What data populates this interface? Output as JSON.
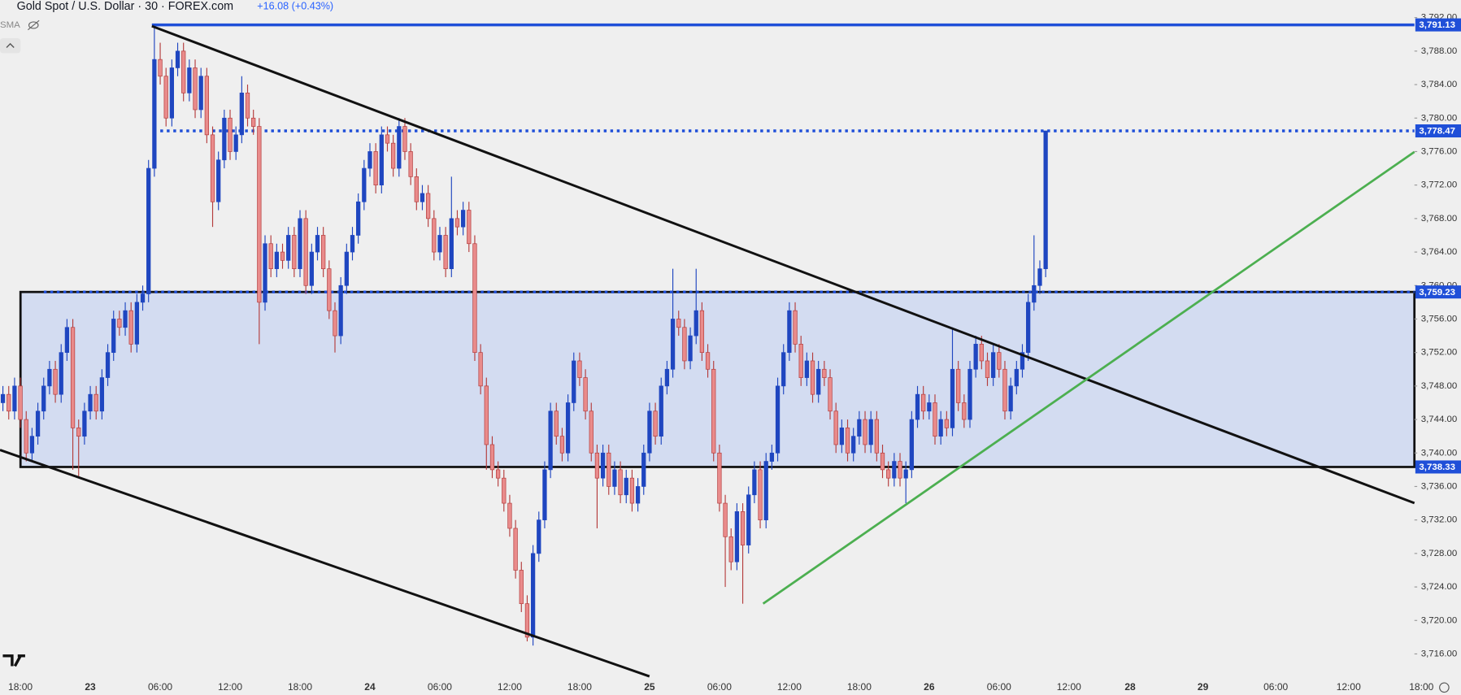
{
  "chart_data": {
    "type": "candlestick",
    "title": "Gold Spot / U.S. Dollar · 30 · FOREX.com",
    "subtitle": "+16.08 (+0.43%)",
    "indicator": "SMA",
    "up_color": "#1f46c0",
    "down_color": "#e98b8b",
    "down_edge": "#b43c3c",
    "xlim": [
      -0.5,
      242.3
    ],
    "ylim": [
      3713.1,
      3794.1
    ],
    "yticks": [
      {
        "value": 3716,
        "label": "3,716.00"
      },
      {
        "value": 3720,
        "label": "3,720.00"
      },
      {
        "value": 3724,
        "label": "3,724.00"
      },
      {
        "value": 3728,
        "label": "3,728.00"
      },
      {
        "value": 3732,
        "label": "3,732.00"
      },
      {
        "value": 3736,
        "label": "3,736.00"
      },
      {
        "value": 3740,
        "label": "3,740.00"
      },
      {
        "value": 3744,
        "label": "3,744.00"
      },
      {
        "value": 3748,
        "label": "3,748.00"
      },
      {
        "value": 3752,
        "label": "3,752.00"
      },
      {
        "value": 3756,
        "label": "3,756.00"
      },
      {
        "value": 3760,
        "label": "3,760.00"
      },
      {
        "value": 3764,
        "label": "3,764.00"
      },
      {
        "value": 3768,
        "label": "3,768.00"
      },
      {
        "value": 3772,
        "label": "3,772.00"
      },
      {
        "value": 3776,
        "label": "3,776.00"
      },
      {
        "value": 3780,
        "label": "3,780.00"
      },
      {
        "value": 3784,
        "label": "3,784.00"
      },
      {
        "value": 3788,
        "label": "3,788.00"
      },
      {
        "value": 3792,
        "label": "3,792.00"
      }
    ],
    "xticks": [
      {
        "value": 3,
        "label": "18:00"
      },
      {
        "value": 15,
        "label": "23"
      },
      {
        "value": 27,
        "label": "06:00"
      },
      {
        "value": 39,
        "label": "12:00"
      },
      {
        "value": 51,
        "label": "18:00"
      },
      {
        "value": 63,
        "label": "24"
      },
      {
        "value": 75,
        "label": "06:00"
      },
      {
        "value": 87,
        "label": "12:00"
      },
      {
        "value": 99,
        "label": "18:00"
      },
      {
        "value": 111,
        "label": "25"
      },
      {
        "value": 123,
        "label": "06:00"
      },
      {
        "value": 135,
        "label": "12:00"
      },
      {
        "value": 147,
        "label": "18:00"
      },
      {
        "value": 159,
        "label": "26"
      },
      {
        "value": 171,
        "label": "06:00"
      },
      {
        "value": 183,
        "label": "12:00"
      },
      {
        "value": 193.5,
        "label": "28"
      },
      {
        "value": 206,
        "label": "29"
      },
      {
        "value": 218.5,
        "label": "06:00"
      },
      {
        "value": 231,
        "label": "12:00"
      },
      {
        "value": 243.5,
        "label": "18:00"
      }
    ],
    "levels": [
      {
        "value": 3791.13,
        "label": "3,791.13",
        "line": "solid"
      },
      {
        "value": 3778.47,
        "label": "3,778.47",
        "line": "dotted"
      },
      {
        "value": 3759.23,
        "label": "3,759.23",
        "line": "dotted"
      },
      {
        "value": 3738.33,
        "label": "3,738.33",
        "line": "none"
      }
    ],
    "range_box": [
      2,
      3
    ],
    "ohlc": [
      [
        3746,
        3748,
        3745,
        3747
      ],
      [
        3747,
        3748,
        3744,
        3745
      ],
      [
        3745,
        3749,
        3744,
        3748
      ],
      [
        3748,
        3749,
        3743,
        3744
      ],
      [
        3744,
        3745,
        3739,
        3740
      ],
      [
        3740,
        3743,
        3739,
        3742
      ],
      [
        3742,
        3746,
        3741,
        3745
      ],
      [
        3745,
        3749,
        3744,
        3748
      ],
      [
        3748,
        3751,
        3747,
        3750
      ],
      [
        3750,
        3751,
        3746,
        3747
      ],
      [
        3747,
        3753,
        3746,
        3752
      ],
      [
        3752,
        3756,
        3751,
        3755
      ],
      [
        3755,
        3756,
        3738,
        3743
      ],
      [
        3743,
        3744,
        3737,
        3742
      ],
      [
        3742,
        3746,
        3741,
        3745
      ],
      [
        3745,
        3748,
        3744,
        3747
      ],
      [
        3747,
        3748,
        3744,
        3745
      ],
      [
        3745,
        3750,
        3744,
        3749
      ],
      [
        3749,
        3753,
        3748,
        3752
      ],
      [
        3752,
        3757,
        3751,
        3756
      ],
      [
        3756,
        3757,
        3754,
        3755
      ],
      [
        3755,
        3758,
        3754,
        3757
      ],
      [
        3757,
        3758,
        3752,
        3753
      ],
      [
        3753,
        3759,
        3752,
        3758
      ],
      [
        3758,
        3760,
        3757,
        3759
      ],
      [
        3759,
        3775,
        3758,
        3774
      ],
      [
        3774,
        3791.13,
        3773,
        3787
      ],
      [
        3787,
        3789,
        3784,
        3785
      ],
      [
        3785,
        3786,
        3779,
        3780
      ],
      [
        3780,
        3787,
        3779,
        3786
      ],
      [
        3786,
        3789,
        3785,
        3788
      ],
      [
        3788,
        3789,
        3782,
        3783
      ],
      [
        3783,
        3787,
        3782,
        3786
      ],
      [
        3786,
        3787,
        3780,
        3781
      ],
      [
        3781,
        3786,
        3780,
        3785
      ],
      [
        3785,
        3786,
        3777,
        3778
      ],
      [
        3778,
        3779,
        3767,
        3770
      ],
      [
        3770,
        3776,
        3769,
        3775
      ],
      [
        3775,
        3781,
        3774,
        3780
      ],
      [
        3780,
        3781,
        3775,
        3776
      ],
      [
        3776,
        3779,
        3775,
        3778
      ],
      [
        3778,
        3785,
        3777,
        3783
      ],
      [
        3783,
        3784,
        3779,
        3780
      ],
      [
        3780,
        3781,
        3778,
        3779
      ],
      [
        3779,
        3780,
        3753,
        3758
      ],
      [
        3758,
        3766,
        3757,
        3765
      ],
      [
        3765,
        3766,
        3761,
        3762
      ],
      [
        3762,
        3765,
        3761,
        3764
      ],
      [
        3764,
        3765,
        3762,
        3763
      ],
      [
        3763,
        3767,
        3762,
        3766
      ],
      [
        3766,
        3767,
        3761,
        3762
      ],
      [
        3762,
        3769,
        3761,
        3768
      ],
      [
        3768,
        3769,
        3759,
        3760
      ],
      [
        3760,
        3765,
        3759,
        3764
      ],
      [
        3764,
        3767,
        3763,
        3766
      ],
      [
        3766,
        3767,
        3761,
        3762
      ],
      [
        3762,
        3763,
        3756,
        3757
      ],
      [
        3757,
        3758,
        3752,
        3754
      ],
      [
        3754,
        3761,
        3753,
        3760
      ],
      [
        3760,
        3765,
        3759,
        3764
      ],
      [
        3764,
        3767,
        3763,
        3766
      ],
      [
        3766,
        3771,
        3765,
        3770
      ],
      [
        3770,
        3775,
        3769,
        3774
      ],
      [
        3774,
        3777,
        3773,
        3776
      ],
      [
        3776,
        3777,
        3771,
        3772
      ],
      [
        3772,
        3779,
        3771,
        3778
      ],
      [
        3778,
        3779,
        3776,
        3777
      ],
      [
        3777,
        3778,
        3773,
        3774
      ],
      [
        3774,
        3780,
        3773,
        3779
      ],
      [
        3779,
        3780,
        3775,
        3776
      ],
      [
        3776,
        3777,
        3772,
        3773
      ],
      [
        3773,
        3774,
        3769,
        3770
      ],
      [
        3770,
        3772,
        3769,
        3771
      ],
      [
        3771,
        3772,
        3767,
        3768
      ],
      [
        3768,
        3769,
        3763,
        3764
      ],
      [
        3764,
        3767,
        3763,
        3766
      ],
      [
        3766,
        3767,
        3761,
        3762
      ],
      [
        3762,
        3773,
        3761,
        3768
      ],
      [
        3768,
        3769,
        3766,
        3767
      ],
      [
        3767,
        3770,
        3766,
        3769
      ],
      [
        3769,
        3770,
        3764,
        3765
      ],
      [
        3765,
        3766,
        3751,
        3752
      ],
      [
        3752,
        3753,
        3747,
        3748
      ],
      [
        3748,
        3749,
        3738,
        3741
      ],
      [
        3741,
        3742,
        3737,
        3738
      ],
      [
        3738,
        3739,
        3736,
        3737
      ],
      [
        3737,
        3738,
        3733,
        3734
      ],
      [
        3734,
        3735,
        3730,
        3731
      ],
      [
        3731,
        3732,
        3725,
        3726
      ],
      [
        3726,
        3727,
        3721,
        3722
      ],
      [
        3722,
        3723,
        3717.5,
        3718
      ],
      [
        3718,
        3729,
        3717,
        3728
      ],
      [
        3728,
        3733,
        3727,
        3732
      ],
      [
        3732,
        3739,
        3731,
        3738
      ],
      [
        3738,
        3746,
        3737,
        3745
      ],
      [
        3745,
        3746,
        3741,
        3742
      ],
      [
        3742,
        3743,
        3739,
        3740
      ],
      [
        3740,
        3747,
        3739,
        3746
      ],
      [
        3746,
        3752,
        3745,
        3751
      ],
      [
        3751,
        3752,
        3748,
        3749
      ],
      [
        3749,
        3750,
        3744,
        3745
      ],
      [
        3745,
        3746,
        3739,
        3740
      ],
      [
        3740,
        3741,
        3731,
        3737
      ],
      [
        3737,
        3741,
        3736,
        3740
      ],
      [
        3740,
        3741,
        3735,
        3736
      ],
      [
        3736,
        3739,
        3735,
        3738
      ],
      [
        3738,
        3739,
        3734,
        3735
      ],
      [
        3735,
        3738,
        3734,
        3737
      ],
      [
        3737,
        3738,
        3733,
        3734
      ],
      [
        3734,
        3737,
        3733,
        3736
      ],
      [
        3736,
        3741,
        3735,
        3740
      ],
      [
        3740,
        3746,
        3739,
        3745
      ],
      [
        3745,
        3746,
        3741,
        3742
      ],
      [
        3742,
        3749,
        3741,
        3748
      ],
      [
        3748,
        3751,
        3747,
        3750
      ],
      [
        3750,
        3762,
        3749,
        3756
      ],
      [
        3756,
        3757,
        3754,
        3755
      ],
      [
        3755,
        3756,
        3750,
        3751
      ],
      [
        3751,
        3755,
        3750,
        3754
      ],
      [
        3754,
        3762,
        3753,
        3757
      ],
      [
        3757,
        3758,
        3751,
        3752
      ],
      [
        3752,
        3753,
        3749,
        3750
      ],
      [
        3750,
        3751,
        3739,
        3740
      ],
      [
        3740,
        3741,
        3733,
        3734
      ],
      [
        3734,
        3735,
        3724,
        3730
      ],
      [
        3730,
        3731,
        3726,
        3727
      ],
      [
        3727,
        3734,
        3726,
        3733
      ],
      [
        3733,
        3734,
        3722,
        3729
      ],
      [
        3729,
        3736,
        3728,
        3735
      ],
      [
        3735,
        3739,
        3734,
        3738
      ],
      [
        3738,
        3739,
        3731,
        3732
      ],
      [
        3732,
        3740,
        3731,
        3739
      ],
      [
        3739,
        3741,
        3738,
        3740
      ],
      [
        3740,
        3749,
        3739,
        3748
      ],
      [
        3748,
        3753,
        3747,
        3752
      ],
      [
        3752,
        3758,
        3751,
        3757
      ],
      [
        3757,
        3758,
        3752,
        3753
      ],
      [
        3753,
        3754,
        3748,
        3749
      ],
      [
        3749,
        3752,
        3748,
        3751
      ],
      [
        3751,
        3752,
        3746,
        3747
      ],
      [
        3747,
        3751,
        3746,
        3750
      ],
      [
        3750,
        3751,
        3748,
        3749
      ],
      [
        3749,
        3750,
        3744,
        3745
      ],
      [
        3745,
        3746,
        3740,
        3741
      ],
      [
        3741,
        3744,
        3740,
        3743
      ],
      [
        3743,
        3744,
        3739,
        3740
      ],
      [
        3740,
        3743,
        3739,
        3742
      ],
      [
        3742,
        3745,
        3741,
        3744
      ],
      [
        3744,
        3745,
        3740,
        3741
      ],
      [
        3741,
        3745,
        3740,
        3744
      ],
      [
        3744,
        3745,
        3739,
        3740
      ],
      [
        3740,
        3741,
        3737,
        3738
      ],
      [
        3738,
        3739,
        3736,
        3737
      ],
      [
        3737,
        3740,
        3736,
        3739
      ],
      [
        3739,
        3740,
        3736,
        3737
      ],
      [
        3737,
        3739,
        3734,
        3738
      ],
      [
        3738,
        3745,
        3737,
        3744
      ],
      [
        3744,
        3748,
        3743,
        3747
      ],
      [
        3747,
        3748,
        3744,
        3745
      ],
      [
        3745,
        3747,
        3744,
        3746
      ],
      [
        3746,
        3747,
        3741,
        3742
      ],
      [
        3742,
        3745,
        3741,
        3744
      ],
      [
        3744,
        3745,
        3742,
        3743
      ],
      [
        3743,
        3755,
        3742,
        3750
      ],
      [
        3750,
        3751,
        3745,
        3746
      ],
      [
        3746,
        3747,
        3743,
        3744
      ],
      [
        3744,
        3751,
        3743,
        3750
      ],
      [
        3750,
        3754,
        3749,
        3753
      ],
      [
        3753,
        3754,
        3750,
        3751
      ],
      [
        3751,
        3752,
        3748,
        3749
      ],
      [
        3749,
        3753,
        3748,
        3752
      ],
      [
        3752,
        3753,
        3749,
        3750
      ],
      [
        3750,
        3751,
        3744,
        3745
      ],
      [
        3745,
        3749,
        3744,
        3748
      ],
      [
        3748,
        3751,
        3747,
        3750
      ],
      [
        3750,
        3753,
        3749,
        3752
      ],
      [
        3752,
        3759,
        3751,
        3758
      ],
      [
        3758,
        3766,
        3757,
        3760
      ],
      [
        3760,
        3763,
        3759,
        3762
      ],
      [
        3762,
        3778.47,
        3761,
        3778.47
      ]
    ]
  }
}
